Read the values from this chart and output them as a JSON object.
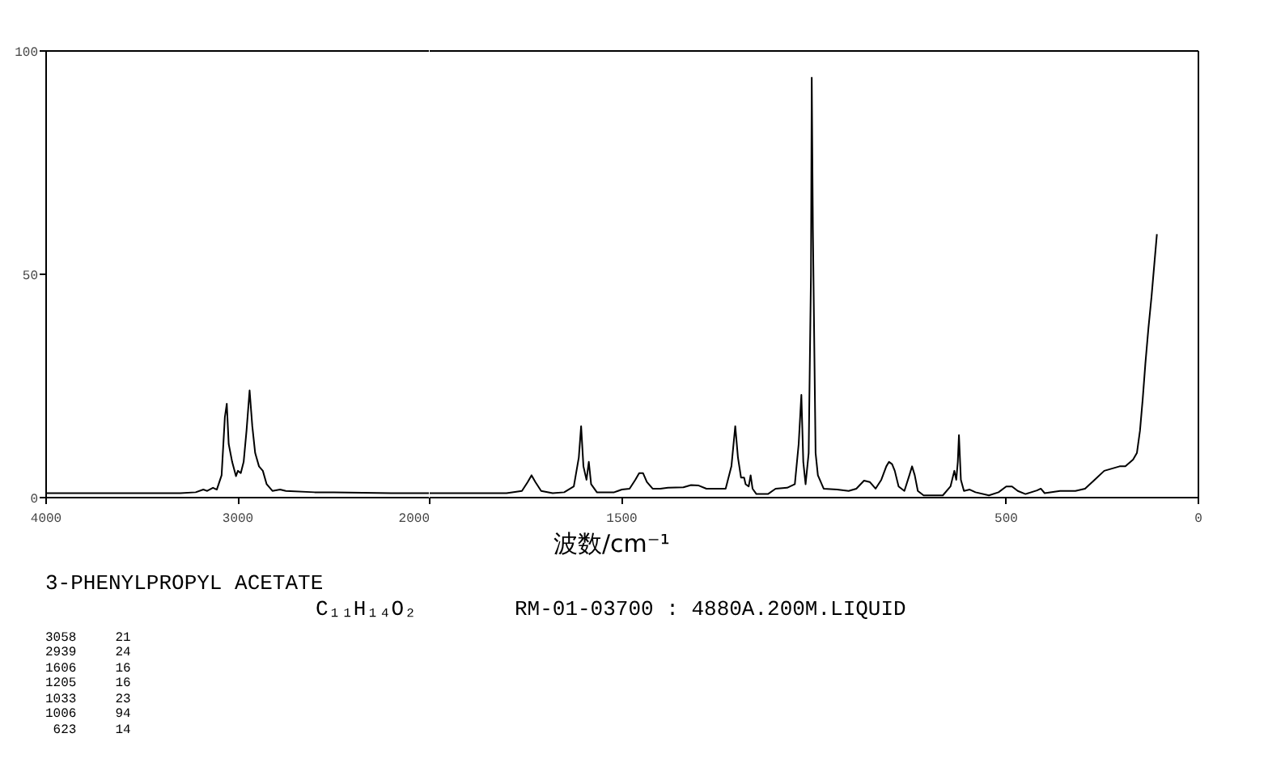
{
  "chart_data": [
    {
      "type": "line",
      "title": "3-PHENYLPROPYL ACETATE",
      "subtitle": "C₁₁H₁₄O₂",
      "xlabel": "波数/cm⁻¹",
      "annotations": [
        "RM-01-03700 : 4880A.200M.LIQUID",
        "3058     21",
        "2939     24",
        "1606     16",
        "1205     16",
        "1033     23",
        "1006     94",
        " 623     14"
      ],
      "xlim": [
        4000,
        2000
      ],
      "ylim": [
        0,
        100
      ],
      "xticks": [
        4000,
        3000,
        2000
      ],
      "yticks": [
        0,
        50,
        100
      ],
      "series": [
        {
          "color": "#000000",
          "x": [
            4000,
            3300,
            3220,
            3180,
            3160,
            3130,
            3110,
            3085,
            3068,
            3058,
            3048,
            3030,
            3010,
            3000,
            2985,
            2970,
            2955,
            2939,
            2925,
            2910,
            2890,
            2870,
            2850,
            2820,
            2780,
            2750,
            2600,
            2500,
            2200,
            2000
          ],
          "values": [
            1,
            1,
            1.2,
            1.8,
            1.5,
            2.2,
            1.8,
            5,
            18,
            21,
            12,
            8,
            4.8,
            6,
            5.5,
            8,
            15,
            24,
            16,
            10,
            7,
            6,
            3,
            1.5,
            1.8,
            1.5,
            1.2,
            1.2,
            1,
            1
          ]
        }
      ]
    },
    {
      "type": "line",
      "xlim": [
        2000,
        0
      ],
      "ylim": [
        0,
        100
      ],
      "xticks": [
        {
          "value": 2000,
          "label": null
        },
        1500,
        500,
        0
      ],
      "tick_labels": "x",
      "series": [
        {
          "color": "#000000",
          "x": [
            2000,
            1800,
            1760,
            1745,
            1735,
            1725,
            1710,
            1680,
            1650,
            1625,
            1612,
            1606,
            1600,
            1592,
            1586,
            1580,
            1565,
            1520,
            1500,
            1480,
            1465,
            1455,
            1445,
            1435,
            1420,
            1400,
            1380,
            1340,
            1320,
            1300,
            1280,
            1230,
            1215,
            1205,
            1198,
            1190,
            1182,
            1178,
            1170,
            1165,
            1160,
            1150,
            1120,
            1100,
            1070,
            1050,
            1040,
            1033,
            1028,
            1022,
            1014,
            1008,
            1006,
            1003,
            996,
            990,
            975,
            940,
            910,
            890,
            870,
            855,
            840,
            825,
            812,
            805,
            797,
            790,
            780,
            765,
            752,
            745,
            738,
            730,
            715,
            665,
            645,
            635,
            630,
            626,
            623,
            618,
            610,
            595,
            580,
            545,
            520,
            500,
            485,
            470,
            450,
            420,
            410,
            400,
            360,
            320,
            295,
            270,
            245,
            225,
            205,
            190,
            170,
            160,
            152,
            145,
            138,
            130,
            122,
            115,
            108
          ],
          "values": [
            1,
            1,
            1.5,
            3.5,
            5,
            3.5,
            1.5,
            1,
            1.2,
            2.5,
            9,
            16,
            7,
            4,
            8,
            3,
            1.2,
            1.2,
            1.8,
            2,
            4,
            5.5,
            5.5,
            3.5,
            2,
            2,
            2.2,
            2.3,
            2.8,
            2.7,
            2,
            2,
            7,
            16,
            9,
            4.5,
            4.5,
            3,
            2.5,
            5,
            2,
            0.8,
            0.8,
            2,
            2.2,
            3,
            12,
            23,
            8,
            3,
            10,
            50,
            94,
            60,
            10,
            5,
            2,
            1.8,
            1.5,
            2,
            3.8,
            3.5,
            2,
            4,
            7,
            8,
            7.5,
            6,
            2.5,
            1.5,
            5,
            7,
            5,
            1.5,
            0.5,
            0.5,
            2.5,
            6,
            4,
            8,
            14,
            4,
            1.5,
            1.8,
            1.2,
            0.5,
            1.2,
            2.5,
            2.5,
            1.5,
            0.8,
            1.6,
            2,
            1,
            1.5,
            1.5,
            2,
            4,
            6,
            6.5,
            7,
            7,
            8.5,
            10,
            15,
            22,
            30,
            38,
            45,
            52,
            59
          ]
        }
      ]
    }
  ]
}
